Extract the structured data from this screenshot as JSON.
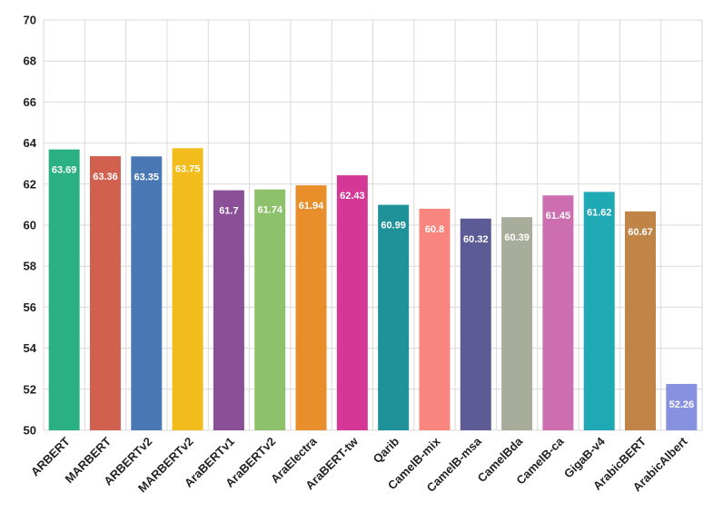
{
  "chart_data": {
    "type": "bar",
    "title": "",
    "xlabel": "",
    "ylabel": "",
    "ylim": [
      50,
      70
    ],
    "yticks": [
      50,
      52,
      54,
      56,
      58,
      60,
      62,
      64,
      66,
      68,
      70
    ],
    "grid": true,
    "categories": [
      "ARBERT",
      "MARBERT",
      "ARBERTv2",
      "MARBERTv2",
      "AraBERTv1",
      "AraBERTv2",
      "AraElectra",
      "AraBERT-tw",
      "Qarib",
      "CamelB-mix",
      "CamelB-msa",
      "CamelBda",
      "CamelB-ca",
      "GigaB-v4",
      "ArabicBERT",
      "ArabicAlbert"
    ],
    "values": [
      63.69,
      63.36,
      63.35,
      63.75,
      61.7,
      61.74,
      61.94,
      62.43,
      60.99,
      60.8,
      60.32,
      60.39,
      61.45,
      61.62,
      60.67,
      52.26
    ],
    "value_labels": [
      "63.69",
      "63.36",
      "63.35",
      "63.75",
      "61.7",
      "61.74",
      "61.94",
      "62.43",
      "60.99",
      "60.8",
      "60.32",
      "60.39",
      "61.45",
      "61.62",
      "60.67",
      "52.26"
    ],
    "colors": [
      "#2ab083",
      "#d1604f",
      "#4a78b5",
      "#f2bc1c",
      "#8a4f97",
      "#8dc16b",
      "#e88e2a",
      "#d43796",
      "#1f9199",
      "#f8857e",
      "#5c5b96",
      "#a8ad9b",
      "#cc6eb0",
      "#1ea9b5",
      "#bf8446",
      "#8890e0"
    ]
  }
}
